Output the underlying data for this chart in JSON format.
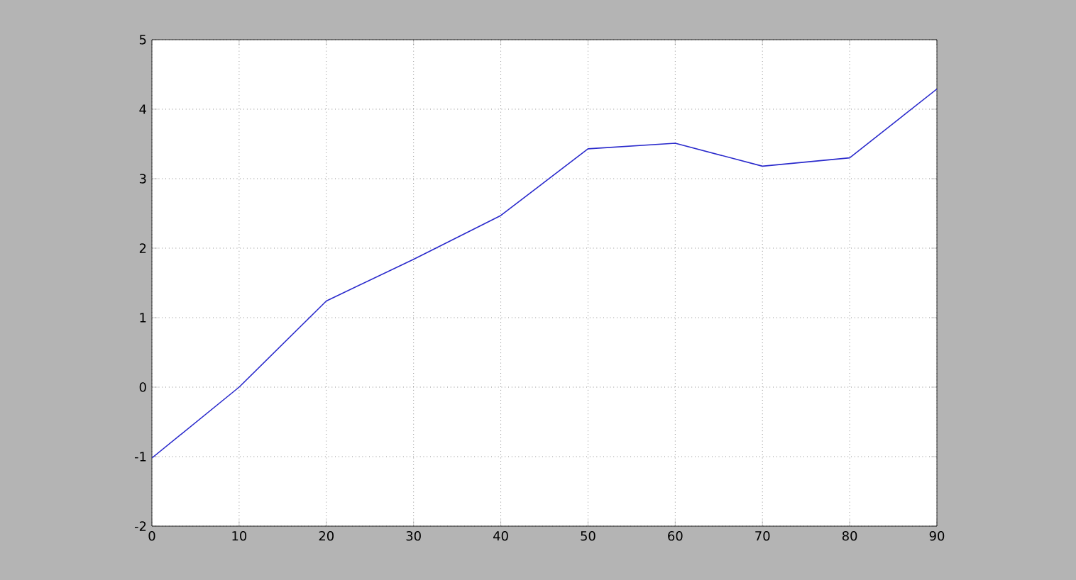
{
  "chart_data": {
    "type": "line",
    "x": [
      0,
      10,
      20,
      30,
      40,
      50,
      60,
      70,
      80,
      90
    ],
    "series": [
      {
        "color": "#2a2acc",
        "values": [
          -1.02,
          0.0,
          1.24,
          1.84,
          2.47,
          3.43,
          3.51,
          3.18,
          3.3,
          4.29
        ]
      }
    ],
    "xlim": [
      0,
      90
    ],
    "ylim": [
      -2,
      5
    ],
    "xticks": [
      0,
      10,
      20,
      30,
      40,
      50,
      60,
      70,
      80,
      90
    ],
    "yticks": [
      -2,
      -1,
      0,
      1,
      2,
      3,
      4,
      5
    ],
    "grid": true,
    "line_style": "solid",
    "marker": "none"
  }
}
